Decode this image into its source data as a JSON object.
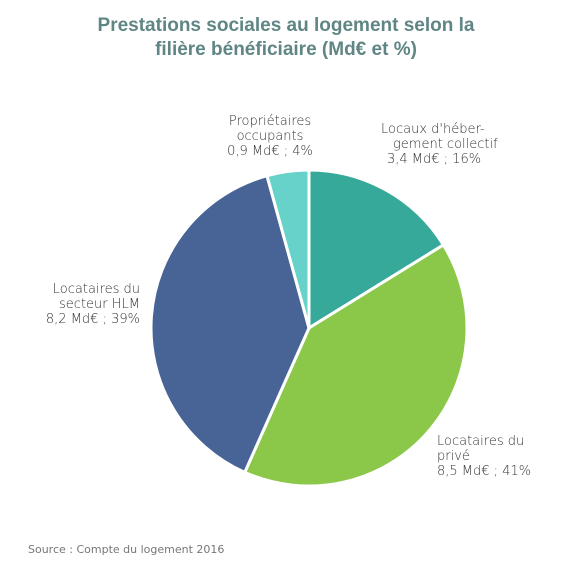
{
  "chart_data": {
    "type": "pie",
    "title": "Prestations sociales au logement selon la filière bénéficiaire (Md€ et %)",
    "title_lines": [
      "Prestations sociales au logement selon la",
      "filière bénéficiaire (Md€ et %)"
    ],
    "slices": [
      {
        "label_lines": [
          "Locaux d'héber-",
          "gement collectif",
          "3,4 Md€ ; 16%"
        ],
        "value": 3.4,
        "percent": 16,
        "color": "#36a99b"
      },
      {
        "label_lines": [
          "Locataires du",
          "privé",
          "8,5 Md€ ; 41%"
        ],
        "value": 8.5,
        "percent": 41,
        "color": "#8bc84a"
      },
      {
        "label_lines": [
          "Locataires du",
          "secteur HLM",
          "8,2 Md€ ; 39%"
        ],
        "value": 8.2,
        "percent": 39,
        "color": "#486496"
      },
      {
        "label_lines": [
          "Propriétaires",
          "occupants",
          "0,9 Md€ ; 4%"
        ],
        "value": 0.9,
        "percent": 4,
        "color": "#67d2c9"
      }
    ],
    "legend": "none",
    "source": "Source : Compte du logement 2016"
  }
}
